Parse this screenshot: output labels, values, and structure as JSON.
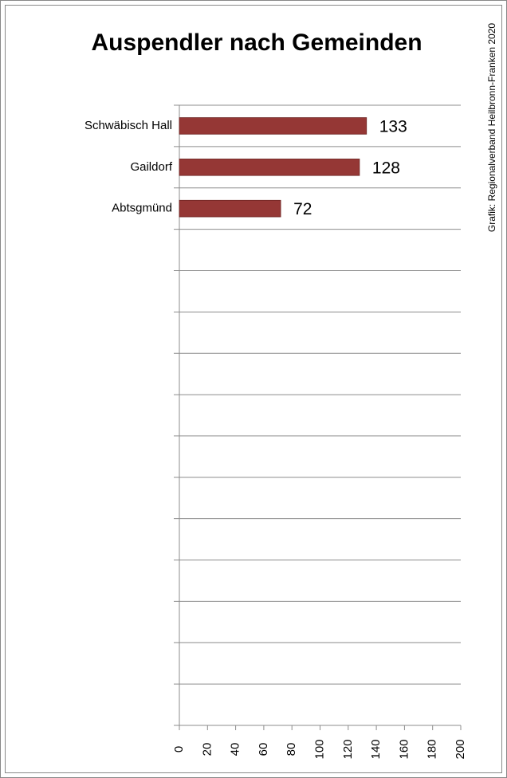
{
  "chart_data": {
    "type": "hbar",
    "title": "Auspendler nach Gemeinden",
    "annotation": "Grafik: Regionalverband Heilbronn-Franken 2020",
    "categories": [
      "Schwäbisch Hall",
      "Gaildorf",
      "Abtsgmünd",
      null,
      null,
      null,
      null,
      null,
      null,
      null,
      null,
      null,
      null,
      null,
      null
    ],
    "values": [
      133,
      128,
      72,
      null,
      null,
      null,
      null,
      null,
      null,
      null,
      null,
      null,
      null,
      null,
      null
    ],
    "color": "#953735",
    "xlim": [
      0,
      200
    ],
    "xticks": [
      0,
      20,
      40,
      60,
      80,
      100,
      120,
      140,
      160,
      180,
      200
    ]
  }
}
